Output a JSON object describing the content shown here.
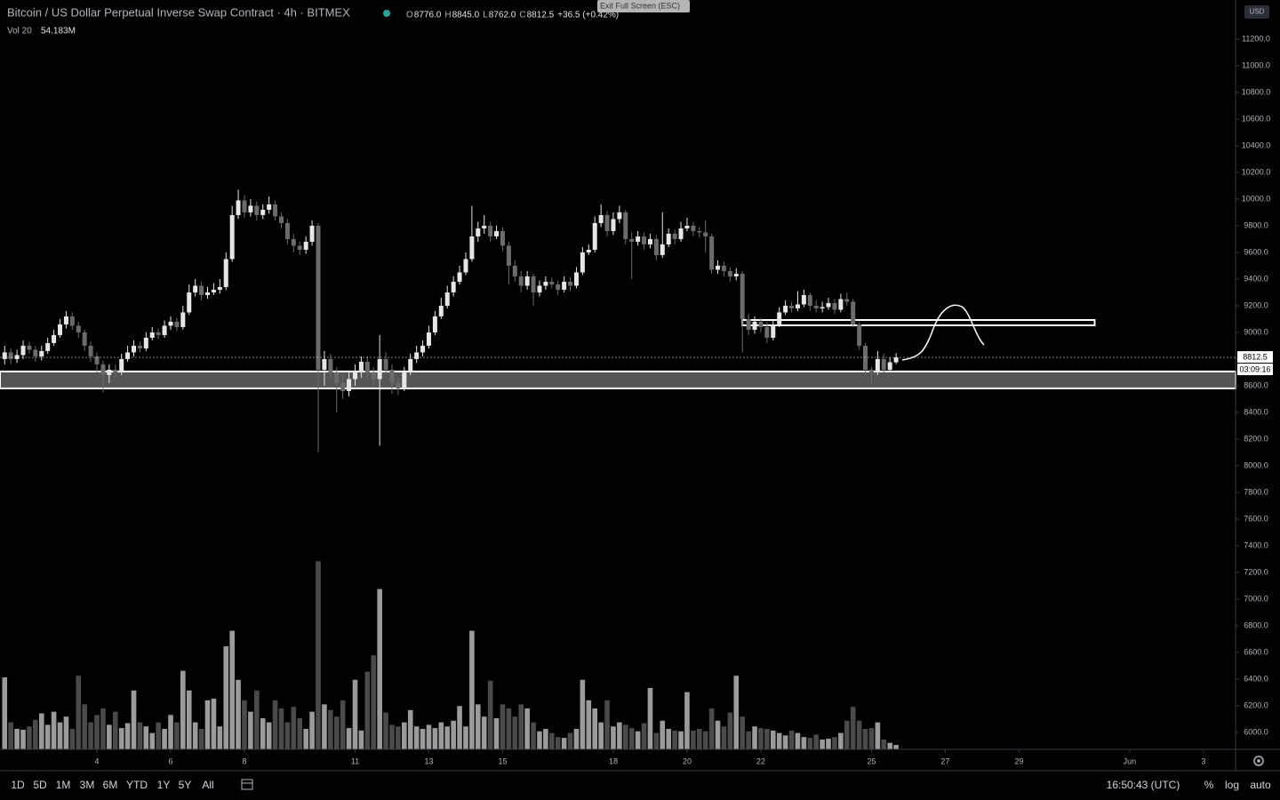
{
  "header": {
    "title": "Bitcoin / US Dollar Perpetual Inverse Swap Contract · 4h · BITMEX",
    "exit_fullscreen": "Exit Full Screen (ESC)",
    "legend": [
      {
        "key": "O",
        "value": "8776.0"
      },
      {
        "key": "H",
        "value": "8845.0"
      },
      {
        "key": "L",
        "value": "8762.0"
      },
      {
        "key": "C",
        "value": "8812.5"
      }
    ],
    "change": "+36.5 (+0.42%)",
    "volume_name": "Vol 20",
    "volume_value": "54.183M",
    "currency": "USD"
  },
  "chart_data": {
    "type": "candlestick",
    "up_color": "#e6e6e6",
    "down_color": "#6b6b6b",
    "volume_up_color": "#9b9b9b",
    "volume_down_color": "#4a4a4a",
    "xlim": [
      1.373,
      34.87
    ],
    "xticks": [
      4,
      6,
      8,
      11,
      13,
      15,
      18,
      20,
      22,
      25,
      27,
      29,
      {
        "value": 32,
        "label": "Jun"
      },
      {
        "value": 34,
        "label": "3"
      }
    ],
    "ylim": [
      5873,
      11493
    ],
    "yticks": [
      {
        "value": 6000,
        "label": "6000.0"
      },
      {
        "value": 6200,
        "label": "6200.0"
      },
      {
        "value": 6400,
        "label": "6400.0"
      },
      {
        "value": 6600,
        "label": "6600.0"
      },
      {
        "value": 6800,
        "label": "6800.0"
      },
      {
        "value": 7000,
        "label": "7000.0"
      },
      {
        "value": 7200,
        "label": "7200.0"
      },
      {
        "value": 7400,
        "label": "7400.0"
      },
      {
        "value": 7600,
        "label": "7600.0"
      },
      {
        "value": 7800,
        "label": "7800.0"
      },
      {
        "value": 8000,
        "label": "8000.0"
      },
      {
        "value": 8200,
        "label": "8200.0"
      },
      {
        "value": 8400,
        "label": "8400.0"
      },
      {
        "value": 8600,
        "label": "8600.0"
      },
      {
        "value": 8800,
        "label": "8800.0"
      },
      {
        "value": 9000,
        "label": "9000.0"
      },
      {
        "value": 9200,
        "label": "9200.0"
      },
      {
        "value": 9400,
        "label": "9400.0"
      },
      {
        "value": 9600,
        "label": "9600.0"
      },
      {
        "value": 9800,
        "label": "9800.0"
      },
      {
        "value": 10000,
        "label": "10000.0"
      },
      {
        "value": 10200,
        "label": "10200.0"
      },
      {
        "value": 10400,
        "label": "10400.0"
      },
      {
        "value": 10600,
        "label": "10600.0"
      },
      {
        "value": 10800,
        "label": "10800.0"
      },
      {
        "value": 11000,
        "label": "11000.0"
      },
      {
        "value": 11200,
        "label": "11200.0"
      }
    ],
    "y2lim": [
      0,
      2500
    ],
    "log_scale": false,
    "grid": false,
    "countdown": "03:09:16",
    "x": [
      1.5,
      1.667,
      1.833,
      2,
      2.167,
      2.333,
      2.5,
      2.667,
      2.833,
      3,
      3.167,
      3.333,
      3.5,
      3.667,
      3.833,
      4,
      4.167,
      4.333,
      4.5,
      4.667,
      4.833,
      5,
      5.167,
      5.333,
      5.5,
      5.667,
      5.833,
      6,
      6.167,
      6.333,
      6.5,
      6.667,
      6.833,
      7,
      7.167,
      7.333,
      7.5,
      7.667,
      7.833,
      8,
      8.167,
      8.333,
      8.5,
      8.667,
      8.833,
      9,
      9.167,
      9.333,
      9.5,
      9.667,
      9.833,
      10,
      10.167,
      10.333,
      10.5,
      10.667,
      10.833,
      11,
      11.167,
      11.333,
      11.5,
      11.667,
      11.833,
      12,
      12.167,
      12.333,
      12.5,
      12.667,
      12.833,
      13,
      13.167,
      13.333,
      13.5,
      13.667,
      13.833,
      14,
      14.167,
      14.333,
      14.5,
      14.667,
      14.833,
      15,
      15.167,
      15.333,
      15.5,
      15.667,
      15.833,
      16,
      16.167,
      16.333,
      16.5,
      16.667,
      16.833,
      17,
      17.167,
      17.333,
      17.5,
      17.667,
      17.833,
      18,
      18.167,
      18.333,
      18.5,
      18.667,
      18.833,
      19,
      19.167,
      19.333,
      19.5,
      19.667,
      19.833,
      20,
      20.167,
      20.333,
      20.5,
      20.667,
      20.833,
      21,
      21.167,
      21.333,
      21.5,
      21.667,
      21.833,
      22,
      22.167,
      22.333,
      22.5,
      22.667,
      22.833,
      23,
      23.167,
      23.333,
      23.5,
      23.667,
      23.833,
      24,
      24.167,
      24.333,
      24.5,
      24.667,
      24.833,
      25,
      25.167,
      25.333,
      25.5,
      25.667
    ],
    "open": [
      8800,
      8850,
      8800,
      8830,
      8900,
      8870,
      8820,
      8860,
      8920,
      8980,
      9060,
      9120,
      9050,
      9000,
      8900,
      8820,
      8760,
      8680,
      8720,
      8700,
      8800,
      8850,
      8900,
      8880,
      8960,
      9000,
      8980,
      9050,
      9080,
      9040,
      9150,
      9300,
      9350,
      9280,
      9300,
      9320,
      9340,
      9550,
      9880,
      9990,
      9900,
      9950,
      9880,
      9920,
      9960,
      9870,
      9820,
      9700,
      9650,
      9620,
      9680,
      9800,
      8720,
      8800,
      8700,
      8620,
      8560,
      8650,
      8700,
      8780,
      8700,
      8650,
      8800,
      8720,
      8620,
      8580,
      8700,
      8800,
      8850,
      8900,
      9000,
      9120,
      9200,
      9300,
      9380,
      9450,
      9550,
      9720,
      9780,
      9800,
      9720,
      9760,
      9650,
      9500,
      9420,
      9350,
      9420,
      9300,
      9350,
      9380,
      9360,
      9320,
      9380,
      9350,
      9450,
      9600,
      9620,
      9820,
      9880,
      9760,
      9850,
      9900,
      9700,
      9680,
      9720,
      9660,
      9700,
      9580,
      9660,
      9740,
      9700,
      9780,
      9800,
      9760,
      9750,
      9720,
      9470,
      9500,
      9460,
      9420,
      9440,
      9100,
      9020,
      9080,
      9040,
      8960,
      9060,
      9150,
      9200,
      9180,
      9210,
      9280,
      9200,
      9180,
      9190,
      9220,
      9170,
      9250,
      9230,
      9060,
      8900,
      8720,
      8700,
      8800,
      8720,
      8776
    ],
    "high": [
      8900,
      8880,
      8870,
      8940,
      8930,
      8900,
      8900,
      8960,
      9020,
      9100,
      9160,
      9150,
      9080,
      9020,
      8930,
      8850,
      8790,
      8760,
      8760,
      8840,
      8900,
      8940,
      8930,
      9000,
      9040,
      9030,
      9090,
      9120,
      9110,
      9200,
      9360,
      9400,
      9380,
      9340,
      9370,
      9400,
      9600,
      9950,
      10070,
      10030,
      10000,
      9980,
      9960,
      10020,
      9990,
      9900,
      9850,
      9740,
      9680,
      9720,
      9840,
      9820,
      8860,
      8840,
      8740,
      8680,
      8700,
      8760,
      8820,
      8820,
      8740,
      8980,
      8850,
      8760,
      8660,
      8740,
      8840,
      8900,
      8940,
      9050,
      9160,
      9260,
      9350,
      9420,
      9500,
      9600,
      9950,
      9830,
      9880,
      9830,
      9800,
      9790,
      9680,
      9540,
      9460,
      9460,
      9440,
      9390,
      9420,
      9410,
      9390,
      9420,
      9410,
      9490,
      9640,
      9660,
      9870,
      9960,
      9910,
      9900,
      9950,
      9920,
      9750,
      9760,
      9750,
      9740,
      9730,
      9900,
      9780,
      9770,
      9830,
      9860,
      9830,
      9790,
      9840,
      9740,
      9540,
      9530,
      9490,
      9480,
      9460,
      9140,
      9120,
      9110,
      9080,
      9100,
      9190,
      9240,
      9230,
      9310,
      9320,
      9300,
      9240,
      9230,
      9260,
      9250,
      9290,
      9300,
      9250,
      9080,
      8920,
      8740,
      8860,
      8840,
      8810,
      8845
    ],
    "low": [
      8760,
      8760,
      8770,
      8800,
      8840,
      8780,
      8790,
      8840,
      8900,
      8960,
      9030,
      9020,
      8960,
      8860,
      8780,
      8700,
      8550,
      8620,
      8660,
      8680,
      8780,
      8820,
      8850,
      8860,
      8940,
      8950,
      8960,
      9020,
      9010,
      9020,
      9130,
      9270,
      9240,
      9250,
      9280,
      9290,
      9320,
      9530,
      9850,
      9860,
      9870,
      9840,
      9850,
      9890,
      9840,
      9780,
      9660,
      9600,
      9580,
      9590,
      9650,
      8100,
      8600,
      8650,
      8400,
      8500,
      8520,
      8600,
      8660,
      8650,
      8600,
      8150,
      8680,
      8540,
      8530,
      8560,
      8680,
      8770,
      8820,
      8880,
      8980,
      9100,
      9180,
      9270,
      9360,
      9430,
      9530,
      9680,
      9740,
      9680,
      9700,
      9610,
      9360,
      9380,
      9300,
      9320,
      9200,
      9270,
      9320,
      9330,
      9280,
      9300,
      9310,
      9330,
      9430,
      9580,
      9600,
      9790,
      9720,
      9730,
      9820,
      9660,
      9400,
      9650,
      9620,
      9630,
      9540,
      9560,
      9640,
      9660,
      9680,
      9760,
      9720,
      9710,
      9600,
      9440,
      9440,
      9420,
      9380,
      9390,
      8850,
      8980,
      8990,
      9000,
      8920,
      8940,
      9040,
      9130,
      9150,
      9160,
      9190,
      9160,
      9150,
      9150,
      9170,
      9140,
      9150,
      9200,
      9040,
      8870,
      8690,
      8620,
      8680,
      8700,
      8700,
      8762
    ],
    "close": [
      8850,
      8800,
      8830,
      8900,
      8870,
      8820,
      8860,
      8920,
      8980,
      9060,
      9120,
      9050,
      9000,
      8900,
      8820,
      8760,
      8680,
      8720,
      8700,
      8800,
      8850,
      8900,
      8880,
      8960,
      9000,
      8980,
      9050,
      9080,
      9040,
      9150,
      9300,
      9350,
      9280,
      9300,
      9320,
      9340,
      9550,
      9880,
      9990,
      9900,
      9950,
      9880,
      9920,
      9960,
      9870,
      9820,
      9700,
      9650,
      9620,
      9680,
      9800,
      8720,
      8800,
      8700,
      8620,
      8560,
      8650,
      8700,
      8780,
      8700,
      8650,
      8800,
      8720,
      8620,
      8580,
      8700,
      8800,
      8850,
      8900,
      9000,
      9120,
      9200,
      9300,
      9380,
      9450,
      9550,
      9720,
      9780,
      9800,
      9720,
      9760,
      9650,
      9500,
      9420,
      9350,
      9420,
      9300,
      9350,
      9380,
      9360,
      9320,
      9380,
      9350,
      9450,
      9600,
      9620,
      9820,
      9880,
      9760,
      9850,
      9900,
      9700,
      9680,
      9720,
      9660,
      9700,
      9580,
      9660,
      9740,
      9700,
      9780,
      9800,
      9760,
      9750,
      9720,
      9470,
      9500,
      9460,
      9420,
      9440,
      9100,
      9020,
      9080,
      9040,
      8960,
      9060,
      9150,
      9200,
      9180,
      9210,
      9280,
      9200,
      9180,
      9190,
      9220,
      9170,
      9250,
      9230,
      9060,
      8900,
      8720,
      8700,
      8800,
      8720,
      8776,
      8812.5
    ],
    "volume": [
      880,
      330,
      250,
      240,
      280,
      360,
      440,
      300,
      460,
      330,
      400,
      250,
      900,
      550,
      330,
      420,
      500,
      300,
      460,
      260,
      320,
      720,
      330,
      280,
      200,
      330,
      250,
      420,
      330,
      960,
      720,
      330,
      250,
      600,
      620,
      280,
      1260,
      1450,
      850,
      600,
      460,
      720,
      380,
      330,
      600,
      500,
      330,
      520,
      380,
      250,
      460,
      2300,
      550,
      480,
      400,
      600,
      260,
      850,
      230,
      950,
      1150,
      1960,
      450,
      300,
      280,
      330,
      480,
      280,
      250,
      300,
      260,
      330,
      280,
      350,
      530,
      280,
      1450,
      550,
      400,
      840,
      380,
      550,
      500,
      400,
      550,
      500,
      330,
      220,
      250,
      200,
      150,
      140,
      200,
      250,
      850,
      600,
      500,
      330,
      600,
      280,
      330,
      300,
      260,
      220,
      320,
      750,
      200,
      350,
      250,
      230,
      220,
      700,
      230,
      250,
      220,
      500,
      350,
      280,
      450,
      900,
      400,
      220,
      280,
      260,
      250,
      230,
      200,
      170,
      230,
      200,
      150,
      140,
      180,
      120,
      130,
      150,
      200,
      350,
      520,
      350,
      250,
      260,
      330,
      120,
      80,
      54.183
    ],
    "zones": [
      {
        "from": 8580,
        "to": 8707
      },
      {
        "from": 9053,
        "to": 9093,
        "x_from": 21.5,
        "x_to": 31.05
      }
    ]
  },
  "toolbar": {
    "ranges": [
      "1D",
      "5D",
      "1M",
      "3M",
      "6M",
      "YTD",
      "1Y",
      "5Y",
      "All"
    ],
    "clock": "16:50:43 (UTC)",
    "options": [
      "%",
      "log",
      "auto"
    ]
  }
}
